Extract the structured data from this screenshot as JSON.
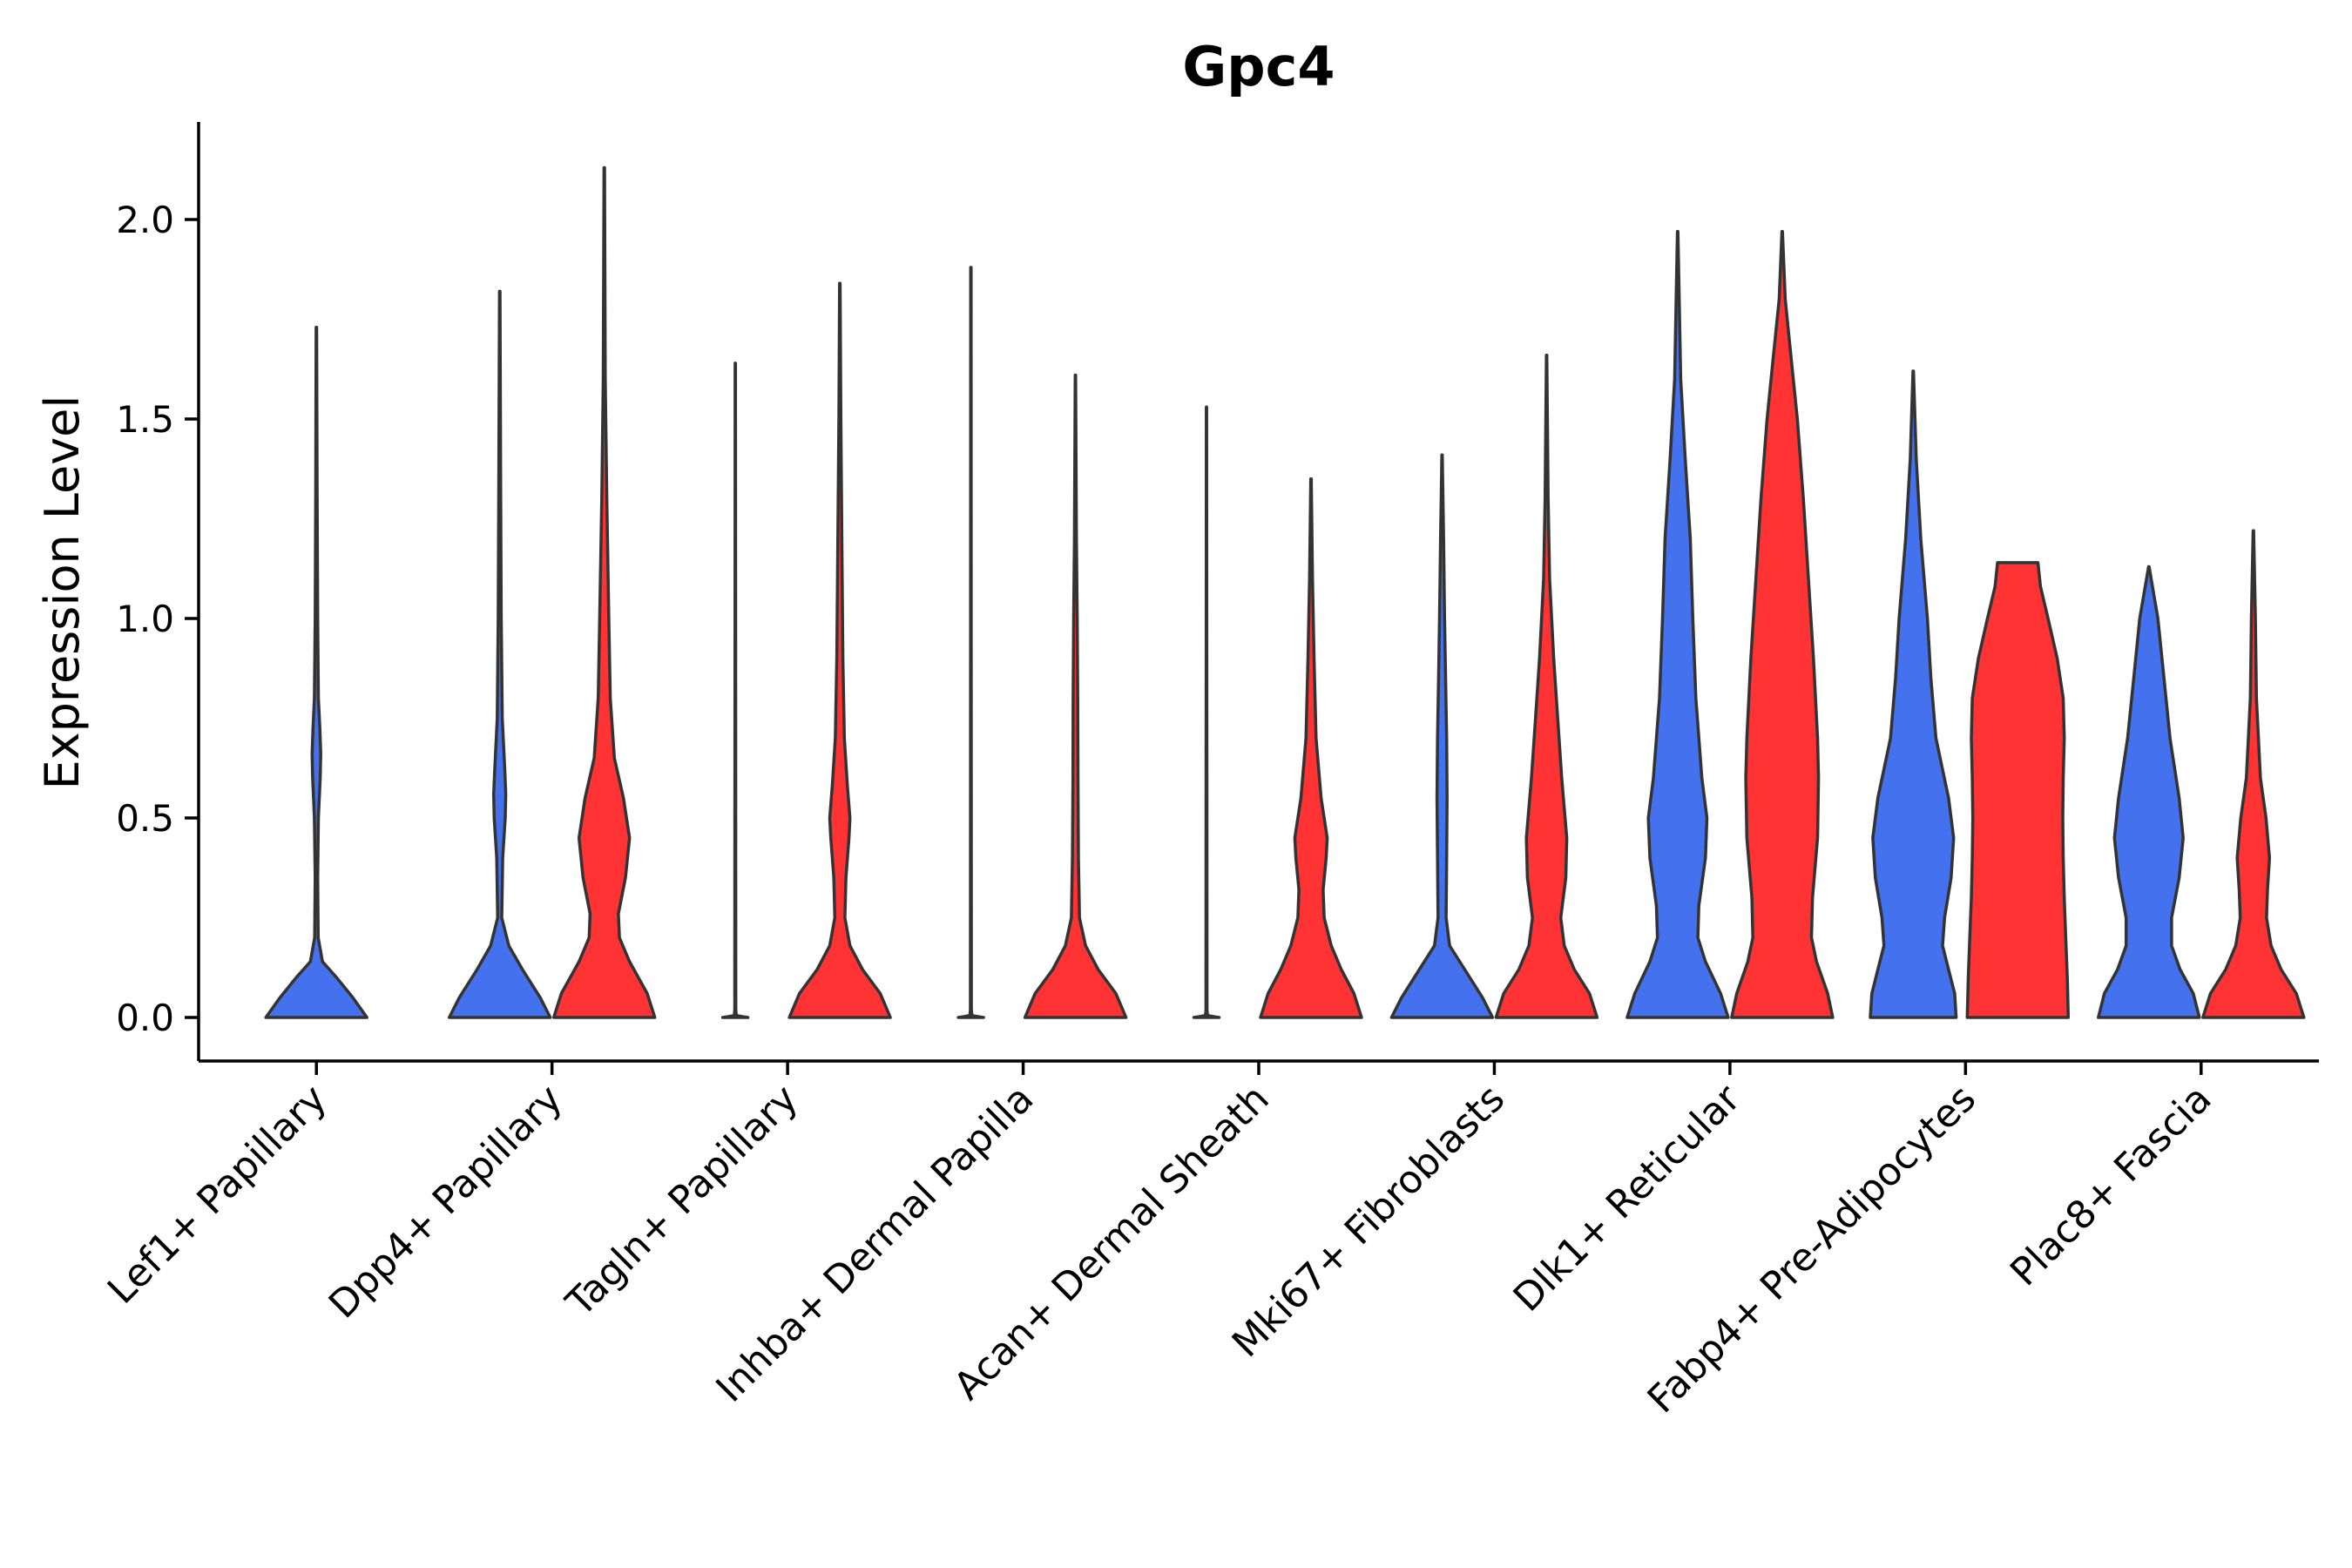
{
  "chart_data": {
    "type": "violin",
    "title": "Gpc4",
    "xlabel": "",
    "ylabel": "Expression Level",
    "ylim": [
      -0.105,
      2.23
    ],
    "yticks": [
      {
        "value": 0.0,
        "label": "0.0"
      },
      {
        "value": 0.5,
        "label": "0.5"
      },
      {
        "value": 1.0,
        "label": "1.0"
      },
      {
        "value": 1.5,
        "label": "1.5"
      },
      {
        "value": 2.0,
        "label": "2.0"
      }
    ],
    "grid": false,
    "colors": {
      "group1": "#4471ed",
      "group2": "#ff3333",
      "outline": "#333333"
    },
    "categories": [
      {
        "label": "Lef1+ Papillary",
        "violins": [
          {
            "group": "group1",
            "max": 1.73,
            "profile": [
              [
                0,
                1.0
              ],
              [
                0.05,
                0.72
              ],
              [
                0.1,
                0.4
              ],
              [
                0.14,
                0.12
              ],
              [
                0.2,
                0.035
              ],
              [
                0.35,
                0.025
              ],
              [
                0.5,
                0.04
              ],
              [
                0.6,
                0.075
              ],
              [
                0.66,
                0.085
              ],
              [
                0.72,
                0.07
              ],
              [
                0.8,
                0.04
              ],
              [
                1.0,
                0.025
              ],
              [
                1.3,
                0.015
              ],
              [
                1.73,
                0.005
              ]
            ]
          }
        ]
      },
      {
        "label": "Dpp4+ Papillary",
        "violins": [
          {
            "group": "group1",
            "max": 1.82,
            "profile": [
              [
                0,
                1.0
              ],
              [
                0.05,
                0.8
              ],
              [
                0.12,
                0.45
              ],
              [
                0.18,
                0.18
              ],
              [
                0.25,
                0.04
              ],
              [
                0.4,
                0.06
              ],
              [
                0.5,
                0.11
              ],
              [
                0.56,
                0.12
              ],
              [
                0.62,
                0.1
              ],
              [
                0.75,
                0.05
              ],
              [
                1.0,
                0.03
              ],
              [
                1.3,
                0.02
              ],
              [
                1.82,
                0.005
              ]
            ]
          },
          {
            "group": "group2",
            "max": 2.13,
            "profile": [
              [
                0,
                1.0
              ],
              [
                0.06,
                0.85
              ],
              [
                0.14,
                0.5
              ],
              [
                0.2,
                0.3
              ],
              [
                0.26,
                0.28
              ],
              [
                0.35,
                0.42
              ],
              [
                0.45,
                0.5
              ],
              [
                0.55,
                0.38
              ],
              [
                0.65,
                0.2
              ],
              [
                0.8,
                0.12
              ],
              [
                1.0,
                0.09
              ],
              [
                1.3,
                0.05
              ],
              [
                1.6,
                0.02
              ],
              [
                2.13,
                0.005
              ]
            ]
          }
        ]
      },
      {
        "label": "Tagln+ Papillary",
        "violins": [
          {
            "group": "group1",
            "max": 1.64,
            "profile": [
              [
                0,
                0.25
              ],
              [
                0.002,
                0.15
              ],
              [
                0.005,
                0.02
              ],
              [
                0.02,
                0.01
              ],
              [
                0.5,
                0.008
              ],
              [
                1.0,
                0.006
              ],
              [
                1.64,
                0.004
              ]
            ]
          },
          {
            "group": "group2",
            "max": 1.84,
            "profile": [
              [
                0,
                1.0
              ],
              [
                0.06,
                0.8
              ],
              [
                0.12,
                0.45
              ],
              [
                0.18,
                0.2
              ],
              [
                0.25,
                0.1
              ],
              [
                0.35,
                0.12
              ],
              [
                0.45,
                0.18
              ],
              [
                0.5,
                0.2
              ],
              [
                0.58,
                0.15
              ],
              [
                0.7,
                0.09
              ],
              [
                0.9,
                0.06
              ],
              [
                1.2,
                0.04
              ],
              [
                1.5,
                0.02
              ],
              [
                1.84,
                0.005
              ]
            ]
          }
        ]
      },
      {
        "label": "Inhba+ Dermal Papilla",
        "violins": [
          {
            "group": "group1",
            "max": 1.88,
            "profile": [
              [
                0,
                0.25
              ],
              [
                0.002,
                0.15
              ],
              [
                0.005,
                0.02
              ],
              [
                0.02,
                0.01
              ],
              [
                0.5,
                0.008
              ],
              [
                1.0,
                0.006
              ],
              [
                1.88,
                0.004
              ]
            ]
          },
          {
            "group": "group2",
            "max": 1.61,
            "profile": [
              [
                0,
                1.0
              ],
              [
                0.06,
                0.8
              ],
              [
                0.12,
                0.45
              ],
              [
                0.18,
                0.2
              ],
              [
                0.25,
                0.08
              ],
              [
                0.4,
                0.06
              ],
              [
                0.6,
                0.05
              ],
              [
                0.8,
                0.045
              ],
              [
                1.0,
                0.035
              ],
              [
                1.2,
                0.02
              ],
              [
                1.61,
                0.005
              ]
            ]
          }
        ]
      },
      {
        "label": "Acan+ Dermal Sheath",
        "violins": [
          {
            "group": "group1",
            "max": 1.53,
            "profile": [
              [
                0,
                0.25
              ],
              [
                0.002,
                0.15
              ],
              [
                0.005,
                0.02
              ],
              [
                0.02,
                0.01
              ],
              [
                0.5,
                0.008
              ],
              [
                1.0,
                0.006
              ],
              [
                1.53,
                0.004
              ]
            ]
          },
          {
            "group": "group2",
            "max": 1.35,
            "profile": [
              [
                0,
                1.0
              ],
              [
                0.06,
                0.85
              ],
              [
                0.12,
                0.6
              ],
              [
                0.18,
                0.4
              ],
              [
                0.25,
                0.26
              ],
              [
                0.32,
                0.24
              ],
              [
                0.4,
                0.3
              ],
              [
                0.45,
                0.32
              ],
              [
                0.55,
                0.2
              ],
              [
                0.7,
                0.1
              ],
              [
                0.9,
                0.06
              ],
              [
                1.1,
                0.03
              ],
              [
                1.35,
                0.005
              ]
            ]
          }
        ]
      },
      {
        "label": "Mki67+ Fibroblasts",
        "violins": [
          {
            "group": "group1",
            "max": 1.41,
            "profile": [
              [
                0,
                1.0
              ],
              [
                0.05,
                0.8
              ],
              [
                0.12,
                0.45
              ],
              [
                0.18,
                0.15
              ],
              [
                0.25,
                0.08
              ],
              [
                0.4,
                0.09
              ],
              [
                0.55,
                0.1
              ],
              [
                0.7,
                0.09
              ],
              [
                0.85,
                0.07
              ],
              [
                1.0,
                0.05
              ],
              [
                1.2,
                0.03
              ],
              [
                1.41,
                0.005
              ]
            ]
          },
          {
            "group": "group2",
            "max": 1.66,
            "profile": [
              [
                0,
                1.0
              ],
              [
                0.06,
                0.85
              ],
              [
                0.12,
                0.55
              ],
              [
                0.18,
                0.35
              ],
              [
                0.25,
                0.28
              ],
              [
                0.35,
                0.38
              ],
              [
                0.45,
                0.4
              ],
              [
                0.6,
                0.3
              ],
              [
                0.75,
                0.22
              ],
              [
                0.9,
                0.14
              ],
              [
                1.1,
                0.06
              ],
              [
                1.3,
                0.03
              ],
              [
                1.66,
                0.005
              ]
            ]
          }
        ]
      },
      {
        "label": "Dlk1+ Reticular",
        "violins": [
          {
            "group": "group1",
            "max": 1.97,
            "profile": [
              [
                0,
                1.0
              ],
              [
                0.06,
                0.85
              ],
              [
                0.14,
                0.55
              ],
              [
                0.2,
                0.4
              ],
              [
                0.28,
                0.42
              ],
              [
                0.4,
                0.55
              ],
              [
                0.5,
                0.58
              ],
              [
                0.6,
                0.48
              ],
              [
                0.8,
                0.36
              ],
              [
                1.0,
                0.3
              ],
              [
                1.2,
                0.25
              ],
              [
                1.4,
                0.15
              ],
              [
                1.6,
                0.06
              ],
              [
                1.97,
                0.005
              ]
            ]
          },
          {
            "group": "group2",
            "max": 1.97,
            "profile": [
              [
                0,
                1.0
              ],
              [
                0.06,
                0.9
              ],
              [
                0.14,
                0.68
              ],
              [
                0.2,
                0.58
              ],
              [
                0.3,
                0.6
              ],
              [
                0.45,
                0.7
              ],
              [
                0.6,
                0.72
              ],
              [
                0.7,
                0.7
              ],
              [
                0.9,
                0.62
              ],
              [
                1.1,
                0.52
              ],
              [
                1.3,
                0.42
              ],
              [
                1.5,
                0.3
              ],
              [
                1.65,
                0.18
              ],
              [
                1.8,
                0.06
              ],
              [
                1.97,
                0.005
              ]
            ]
          }
        ]
      },
      {
        "label": "Fabp4+ Pre-Adipocytes",
        "violins": [
          {
            "group": "group1",
            "max": 1.62,
            "profile": [
              [
                0,
                0.85
              ],
              [
                0.06,
                0.82
              ],
              [
                0.12,
                0.7
              ],
              [
                0.18,
                0.58
              ],
              [
                0.25,
                0.62
              ],
              [
                0.35,
                0.75
              ],
              [
                0.45,
                0.8
              ],
              [
                0.55,
                0.7
              ],
              [
                0.7,
                0.45
              ],
              [
                0.85,
                0.35
              ],
              [
                1.0,
                0.28
              ],
              [
                1.2,
                0.15
              ],
              [
                1.4,
                0.06
              ],
              [
                1.62,
                0.005
              ]
            ]
          },
          {
            "group": "group2",
            "max": 1.14,
            "profile": [
              [
                0,
                1.0
              ],
              [
                0.1,
                0.98
              ],
              [
                0.2,
                0.95
              ],
              [
                0.3,
                0.92
              ],
              [
                0.4,
                0.9
              ],
              [
                0.5,
                0.89
              ],
              [
                0.6,
                0.9
              ],
              [
                0.7,
                0.92
              ],
              [
                0.8,
                0.9
              ],
              [
                0.9,
                0.78
              ],
              [
                1.0,
                0.6
              ],
              [
                1.08,
                0.45
              ],
              [
                1.14,
                0.4
              ]
            ]
          }
        ]
      },
      {
        "label": "Plac8+ Fascia",
        "violins": [
          {
            "group": "group1",
            "max": 1.13,
            "profile": [
              [
                0,
                1.0
              ],
              [
                0.06,
                0.88
              ],
              [
                0.12,
                0.62
              ],
              [
                0.18,
                0.45
              ],
              [
                0.25,
                0.45
              ],
              [
                0.35,
                0.6
              ],
              [
                0.45,
                0.68
              ],
              [
                0.55,
                0.6
              ],
              [
                0.7,
                0.42
              ],
              [
                0.85,
                0.3
              ],
              [
                1.0,
                0.18
              ],
              [
                1.13,
                0.005
              ]
            ]
          },
          {
            "group": "group2",
            "max": 1.22,
            "profile": [
              [
                0,
                1.0
              ],
              [
                0.06,
                0.85
              ],
              [
                0.12,
                0.55
              ],
              [
                0.18,
                0.35
              ],
              [
                0.25,
                0.26
              ],
              [
                0.32,
                0.28
              ],
              [
                0.4,
                0.32
              ],
              [
                0.5,
                0.25
              ],
              [
                0.6,
                0.14
              ],
              [
                0.8,
                0.06
              ],
              [
                1.0,
                0.04
              ],
              [
                1.22,
                0.005
              ]
            ]
          }
        ]
      }
    ]
  }
}
